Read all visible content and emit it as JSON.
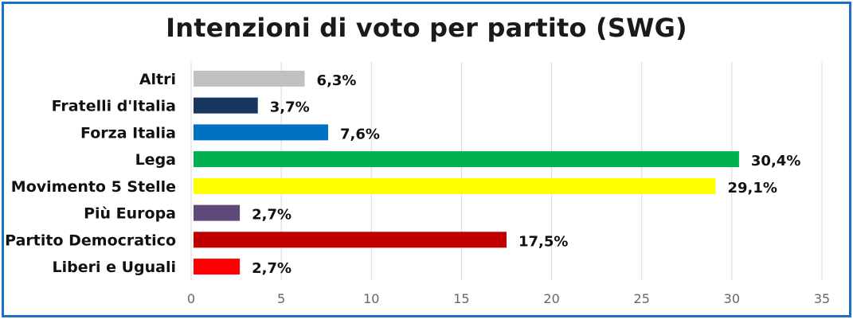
{
  "chart_data": {
    "type": "bar",
    "orientation": "horizontal",
    "title": "Intenzioni di voto per partito (SWG)",
    "xlabel": "",
    "ylabel": "",
    "xlim": [
      0,
      35
    ],
    "ticks": [
      "0",
      "5",
      "10",
      "15",
      "20",
      "25",
      "30",
      "35"
    ],
    "tick_values": [
      0,
      5,
      10,
      15,
      20,
      25,
      30,
      35
    ],
    "grid": "vertical",
    "legend": "none",
    "categories": [
      "Altri",
      "Fratelli d'Italia",
      "Forza Italia",
      "Lega",
      "Movimento 5 Stelle",
      "Più Europa",
      "Partito Democratico",
      "Liberi e Uguali"
    ],
    "values": [
      6.3,
      3.7,
      7.6,
      30.4,
      29.1,
      2.7,
      17.5,
      2.7
    ],
    "value_labels": [
      "6,3%",
      "3,7%",
      "7,6%",
      "30,4%",
      "29,1%",
      "2,7%",
      "17,5%",
      "2,7%"
    ],
    "colors": [
      "#c0c0c0",
      "#17375e",
      "#0070c0",
      "#00b050",
      "#ffff00",
      "#60497a",
      "#c00000",
      "#ff0000"
    ]
  }
}
